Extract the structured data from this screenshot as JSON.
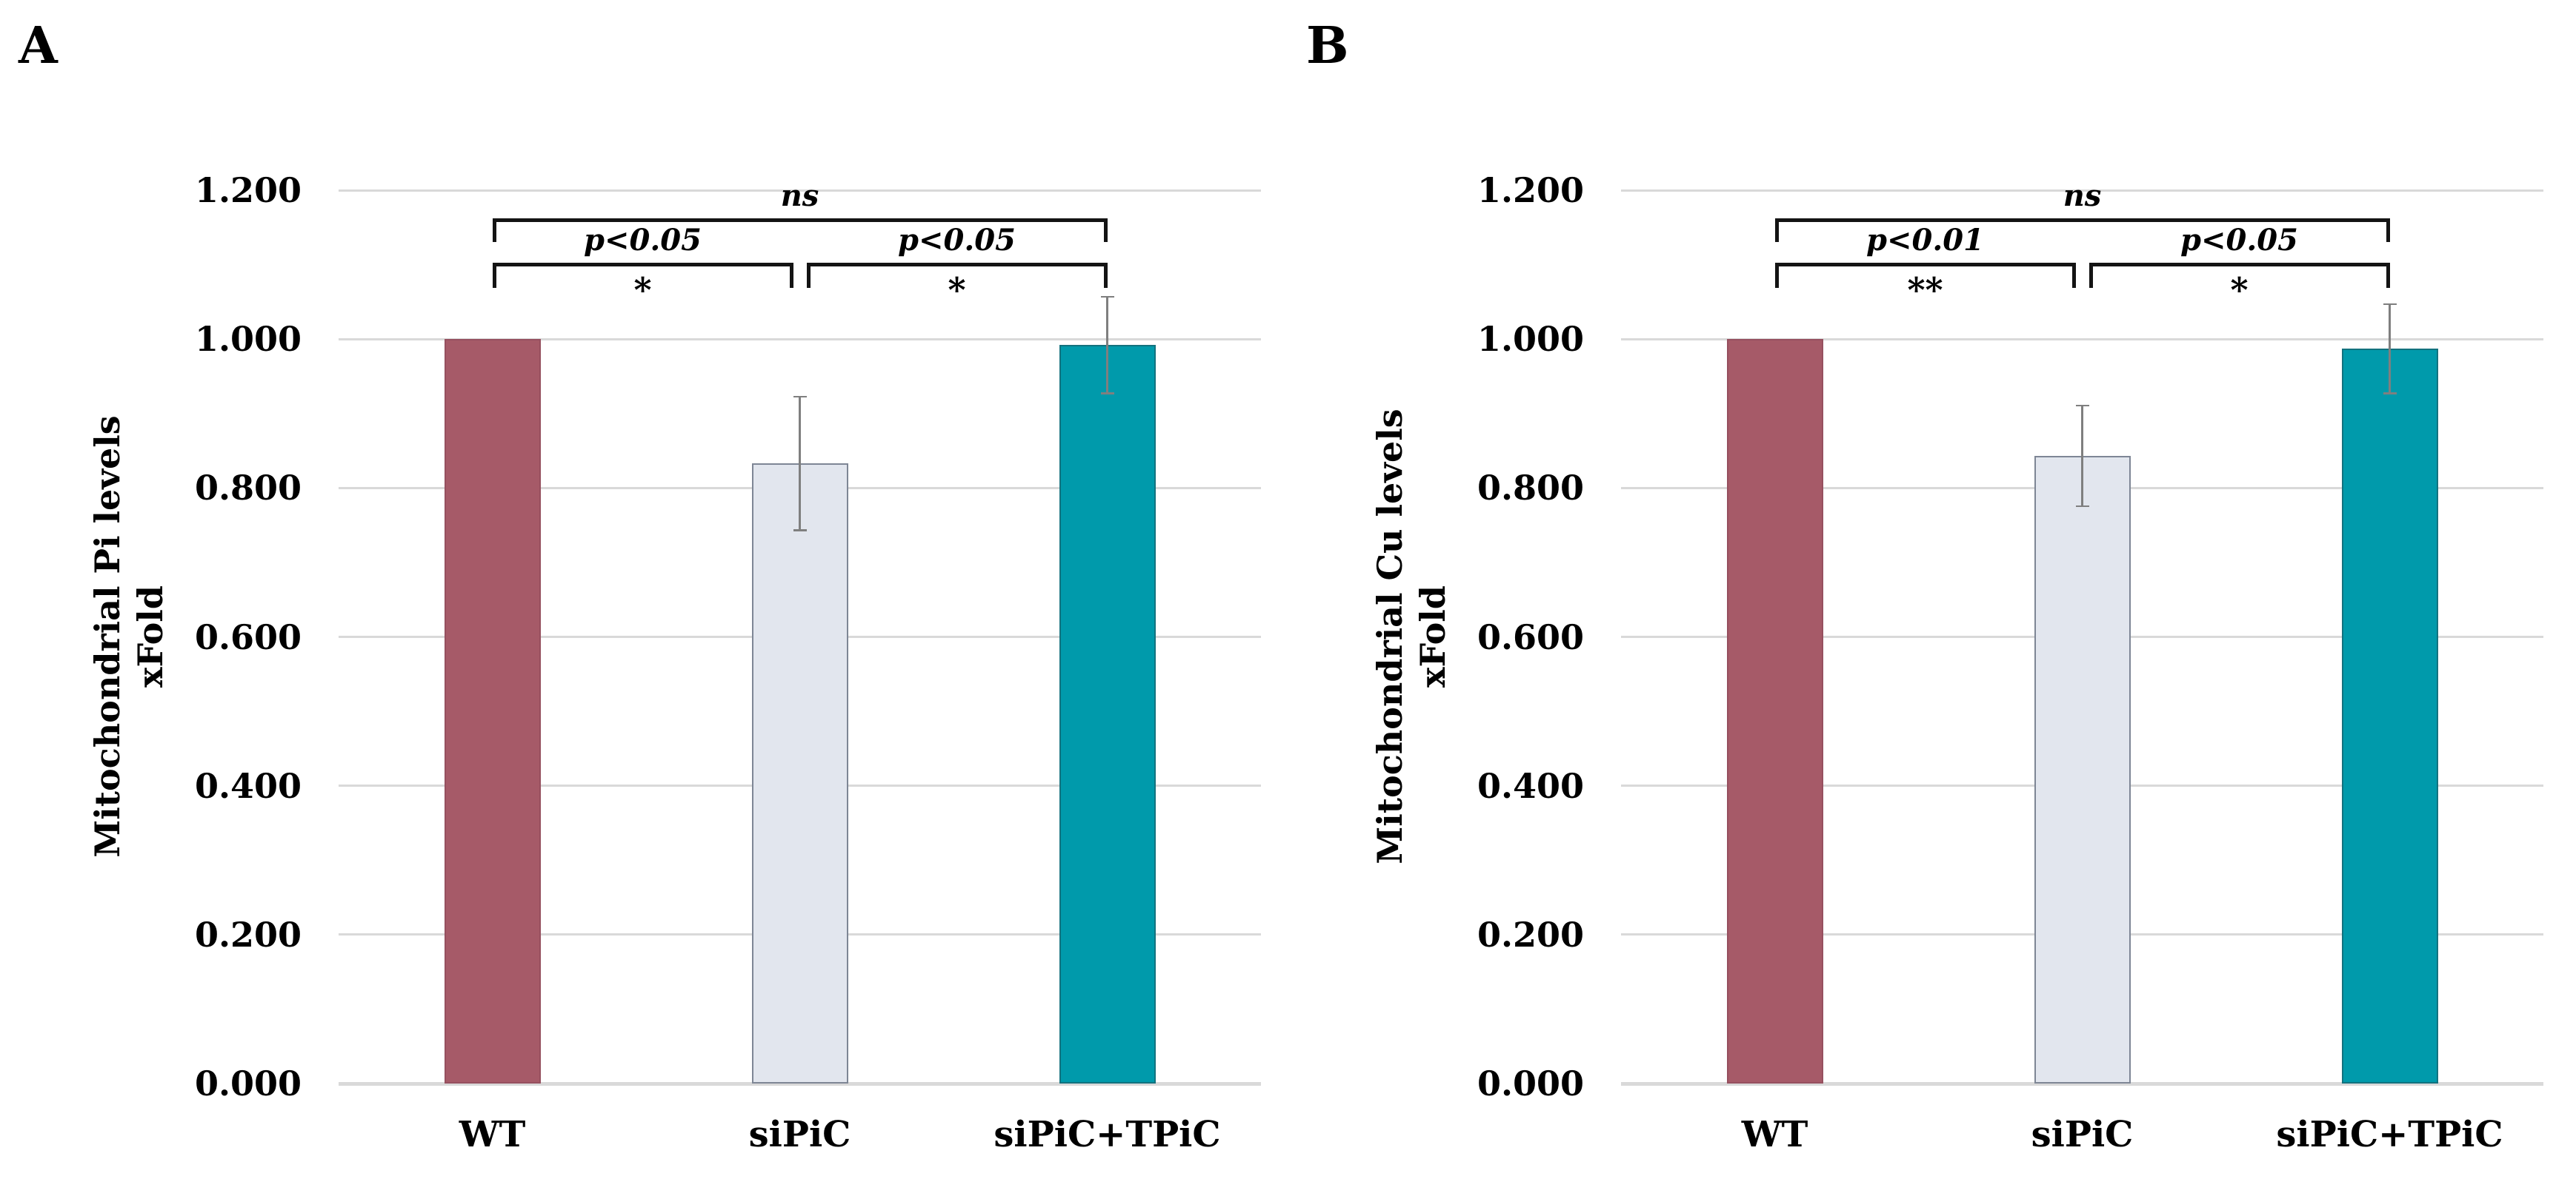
{
  "chart_data": [
    {
      "type": "bar",
      "panel_letter": "A",
      "ylabel_line1": "Mitochondrial Pi levels",
      "ylabel_line2": "xFold",
      "ylim": [
        0,
        1.2
      ],
      "ytick_step": 0.2,
      "ytick_labels": [
        "0.000",
        "0.200",
        "0.400",
        "0.600",
        "0.800",
        "1.000",
        "1.200"
      ],
      "grid": true,
      "legend": "none",
      "categories": [
        "WT",
        "siPiC",
        "siPiC+TPiC"
      ],
      "values": [
        1.0,
        0.833,
        0.992
      ],
      "errors": [
        0,
        0.09,
        0.065
      ],
      "bar_colors": [
        "#a65a68",
        "#e2e6ee",
        "#009aab"
      ],
      "bar_border_colors": [
        "#96505f",
        "#7e8695",
        "#13727e"
      ],
      "gridline_color": "#d9d9d9",
      "error_bar_color": "#7f7f7f",
      "annotations": [
        {
          "from": 0,
          "to": 2,
          "label": "ns",
          "sub": ""
        },
        {
          "from": 0,
          "to": 1,
          "label": "p<0.05",
          "sub": "*"
        },
        {
          "from": 1,
          "to": 2,
          "label": "p<0.05",
          "sub": "*"
        }
      ]
    },
    {
      "type": "bar",
      "panel_letter": "B",
      "ylabel_line1": "Mitochondrial Cu levels",
      "ylabel_line2": "xFold",
      "ylim": [
        0,
        1.2
      ],
      "ytick_step": 0.2,
      "ytick_labels": [
        "0.000",
        "0.200",
        "0.400",
        "0.600",
        "0.800",
        "1.000",
        "1.200"
      ],
      "grid": true,
      "legend": "none",
      "categories": [
        "WT",
        "siPiC",
        "siPiC+TPiC"
      ],
      "values": [
        1.0,
        0.843,
        0.987
      ],
      "errors": [
        0,
        0.068,
        0.06
      ],
      "bar_colors": [
        "#a65a68",
        "#e2e6ee",
        "#009aab"
      ],
      "bar_border_colors": [
        "#96505f",
        "#7e8695",
        "#13727e"
      ],
      "gridline_color": "#d9d9d9",
      "error_bar_color": "#7f7f7f",
      "annotations": [
        {
          "from": 0,
          "to": 2,
          "label": "ns",
          "sub": ""
        },
        {
          "from": 0,
          "to": 1,
          "label": "p<0.01",
          "sub": "**"
        },
        {
          "from": 1,
          "to": 2,
          "label": "p<0.05",
          "sub": "*"
        }
      ]
    }
  ]
}
